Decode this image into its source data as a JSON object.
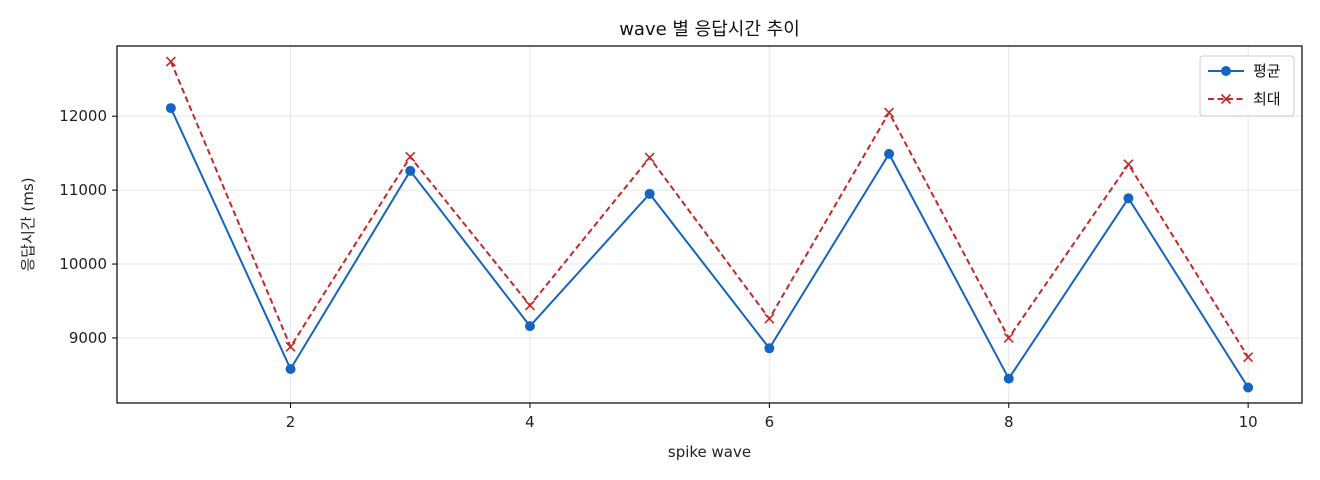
{
  "chart_data": {
    "type": "line",
    "title": "wave 별 응답시간 추이",
    "xlabel": "spike wave",
    "ylabel": "응답시간 (ms)",
    "x": [
      1,
      2,
      3,
      4,
      5,
      6,
      7,
      8,
      9,
      10
    ],
    "xlim": [
      0.55,
      10.45
    ],
    "ylim": [
      8120,
      12950
    ],
    "xticks": [
      2,
      4,
      6,
      8,
      10
    ],
    "yticks": [
      9000,
      10000,
      11000,
      12000
    ],
    "grid": true,
    "legend_position": "top-right",
    "series": [
      {
        "name": "평균",
        "values": [
          12110,
          8580,
          11260,
          9160,
          10950,
          8860,
          11490,
          8450,
          10890,
          8330
        ],
        "color": "#1565c0",
        "line_style": "solid",
        "marker": "circle"
      },
      {
        "name": "최대",
        "values": [
          12740,
          8880,
          11450,
          9440,
          11440,
          9260,
          12050,
          9000,
          11350,
          8740
        ],
        "color": "#c62828",
        "line_style": "dashed",
        "marker": "x"
      }
    ]
  }
}
